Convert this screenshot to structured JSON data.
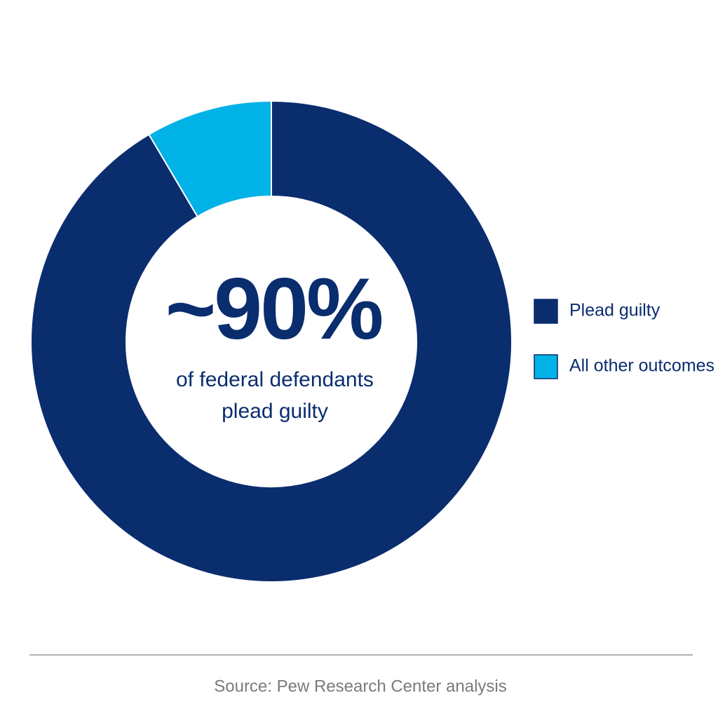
{
  "chart_data": {
    "type": "donut",
    "categories": [
      "Plead guilty",
      "All other outcomes"
    ],
    "values": [
      91.5,
      8.5
    ],
    "colors": [
      "#0a2d6e",
      "#00b2e6"
    ],
    "center_value": "~90%",
    "center_text": [
      "of federal defendants",
      "plead guilty"
    ],
    "source": "Source: Pew Research Center analysis"
  }
}
